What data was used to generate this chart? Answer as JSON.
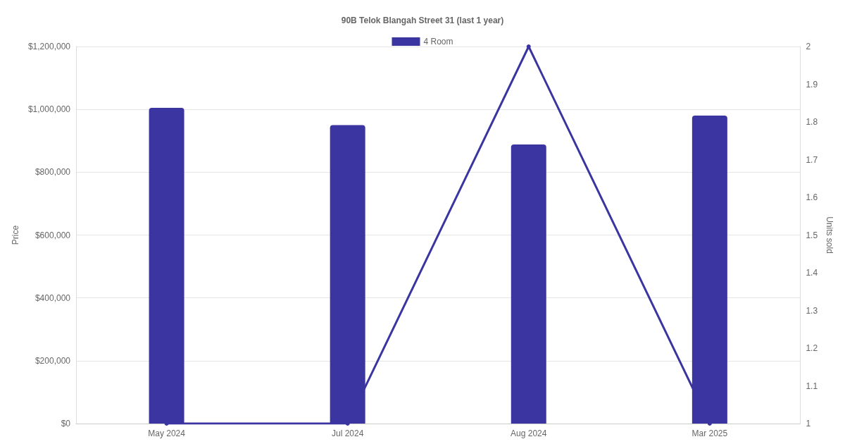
{
  "chart_data": {
    "type": "bar",
    "title": "90B Telok Blangah Street 31 (last 1 year)",
    "ylabel": "Price",
    "y2label": "Units sold",
    "categories": [
      "May 2024",
      "Jul 2024",
      "Aug 2024",
      "Mar 2025"
    ],
    "series": [
      {
        "name": "4 Room",
        "color": "#3a35a0",
        "values": [
          1005000,
          950000,
          888000,
          980000
        ]
      },
      {
        "type": "line",
        "axis": "y2",
        "color": "#3a35a0",
        "values": [
          1,
          1,
          2,
          1
        ],
        "marker": "circle"
      }
    ],
    "ylim": [
      0,
      1200000
    ],
    "yticks": [
      {
        "value": 0,
        "label": "$0"
      },
      {
        "value": 200000,
        "label": "$200,000"
      },
      {
        "value": 400000,
        "label": "$400,000"
      },
      {
        "value": 600000,
        "label": "$600,000"
      },
      {
        "value": 800000,
        "label": "$800,000"
      },
      {
        "value": 1000000,
        "label": "$1,000,000"
      },
      {
        "value": 1200000,
        "label": "$1,200,000"
      }
    ],
    "y2lim": [
      1,
      2
    ],
    "y2ticks": [
      1,
      1.1,
      1.2,
      1.3,
      1.4,
      1.5,
      1.6,
      1.7,
      1.8,
      1.9,
      2
    ],
    "grid": "y",
    "legend": "top"
  }
}
